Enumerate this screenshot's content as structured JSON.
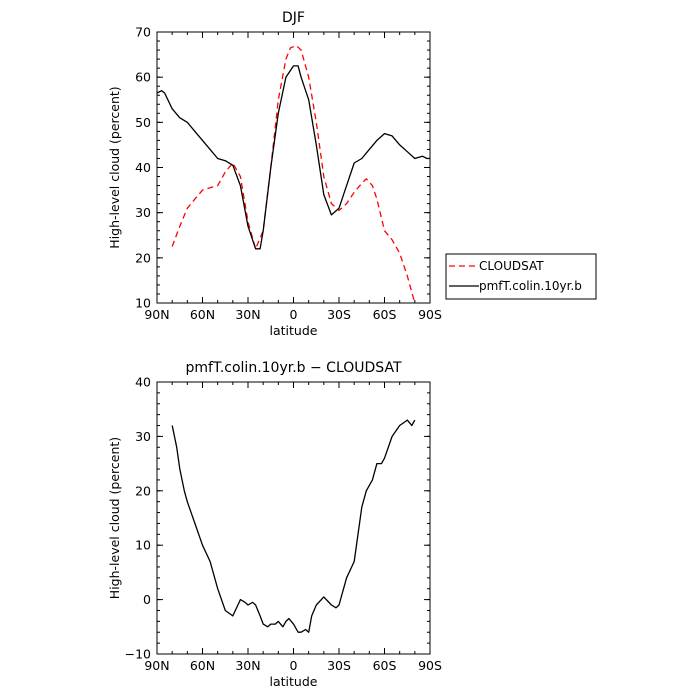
{
  "chart_data": [
    {
      "type": "line",
      "title": "DJF",
      "xlabel": "latitude",
      "ylabel": "High-level cloud (percent)",
      "xlim": [
        90,
        -90
      ],
      "ylim": [
        10,
        70
      ],
      "xticks": [
        90,
        60,
        30,
        0,
        -30,
        -60,
        -90
      ],
      "xtick_labels": [
        "90N",
        "60N",
        "30N",
        "0",
        "30S",
        "60S",
        "90S"
      ],
      "yticks": [
        10,
        20,
        30,
        40,
        50,
        60,
        70
      ],
      "ytick_labels": [
        "10",
        "20",
        "30",
        "40",
        "50",
        "60",
        "70"
      ],
      "legend": "right",
      "series": [
        {
          "name": "CLOUDSAT",
          "color": "#ff0000",
          "dash": "dashed",
          "x": [
            80,
            75,
            70,
            65,
            60,
            55,
            50,
            45,
            40,
            35,
            30,
            25,
            20,
            15,
            10,
            5,
            2,
            -2,
            -5,
            -10,
            -15,
            -20,
            -25,
            -30,
            -35,
            -40,
            -45,
            -48,
            -52,
            -55,
            -60,
            -65,
            -70,
            -75,
            -80
          ],
          "y": [
            22.5,
            27,
            31,
            33,
            35,
            35.5,
            36,
            39,
            41,
            38,
            28,
            22,
            26,
            40,
            55,
            64,
            66.5,
            67,
            66,
            60,
            50,
            38,
            32,
            30.5,
            32,
            34.5,
            36.5,
            37.5,
            36,
            33,
            26,
            24,
            21,
            16,
            10
          ]
        },
        {
          "name": "pmfT.colin.10yr.b",
          "color": "#000000",
          "dash": "solid",
          "x": [
            90,
            87,
            85,
            80,
            75,
            70,
            65,
            60,
            55,
            50,
            45,
            40,
            35,
            30,
            25,
            22,
            20,
            15,
            10,
            5,
            0,
            -3,
            -5,
            -10,
            -15,
            -20,
            -25,
            -30,
            -35,
            -40,
            -45,
            -50,
            -55,
            -60,
            -65,
            -70,
            -75,
            -80,
            -85,
            -88,
            -90
          ],
          "y": [
            56.5,
            57,
            56.5,
            53,
            51,
            50,
            48,
            46,
            44,
            42,
            41.5,
            40.5,
            36,
            27,
            22,
            22,
            26,
            40,
            52,
            60,
            62.5,
            62.5,
            60,
            55,
            45,
            34,
            29.5,
            31,
            36,
            41,
            42,
            44,
            46,
            47.5,
            47,
            45,
            43.5,
            42,
            42.5,
            42,
            42
          ]
        }
      ]
    },
    {
      "type": "line",
      "title": "pmfT.colin.10yr.b − CLOUDSAT",
      "xlabel": "latitude",
      "ylabel": "High-level cloud (percent)",
      "xlim": [
        90,
        -90
      ],
      "ylim": [
        -10,
        40
      ],
      "xticks": [
        90,
        60,
        30,
        0,
        -30,
        -60,
        -90
      ],
      "xtick_labels": [
        "90N",
        "60N",
        "30N",
        "0",
        "30S",
        "60S",
        "90S"
      ],
      "yticks": [
        -10,
        0,
        10,
        20,
        30,
        40
      ],
      "ytick_labels": [
        "−10",
        "0",
        "10",
        "20",
        "30",
        "40"
      ],
      "series": [
        {
          "color": "#000000",
          "dash": "solid",
          "x": [
            80,
            77,
            75,
            72,
            70,
            65,
            60,
            55,
            50,
            45,
            40,
            35,
            32,
            30,
            27,
            25,
            22,
            20,
            17,
            15,
            12,
            10,
            7,
            5,
            3,
            0,
            -3,
            -5,
            -8,
            -10,
            -12,
            -15,
            -20,
            -25,
            -28,
            -30,
            -35,
            -40,
            -45,
            -48,
            -52,
            -55,
            -58,
            -60,
            -65,
            -70,
            -75,
            -78,
            -80
          ],
          "y": [
            32,
            28,
            24,
            20,
            18,
            14,
            10,
            7,
            2,
            -2,
            -3,
            0,
            -0.5,
            -1,
            -0.5,
            -1,
            -3,
            -4.5,
            -5,
            -4.5,
            -4.5,
            -4,
            -5,
            -4,
            -3.5,
            -4.5,
            -6,
            -6,
            -5.5,
            -6,
            -3,
            -1,
            0.5,
            -1,
            -1.5,
            -1,
            4,
            7,
            17,
            20,
            22,
            25,
            25,
            26,
            30,
            32,
            33,
            32,
            33
          ]
        }
      ]
    }
  ]
}
